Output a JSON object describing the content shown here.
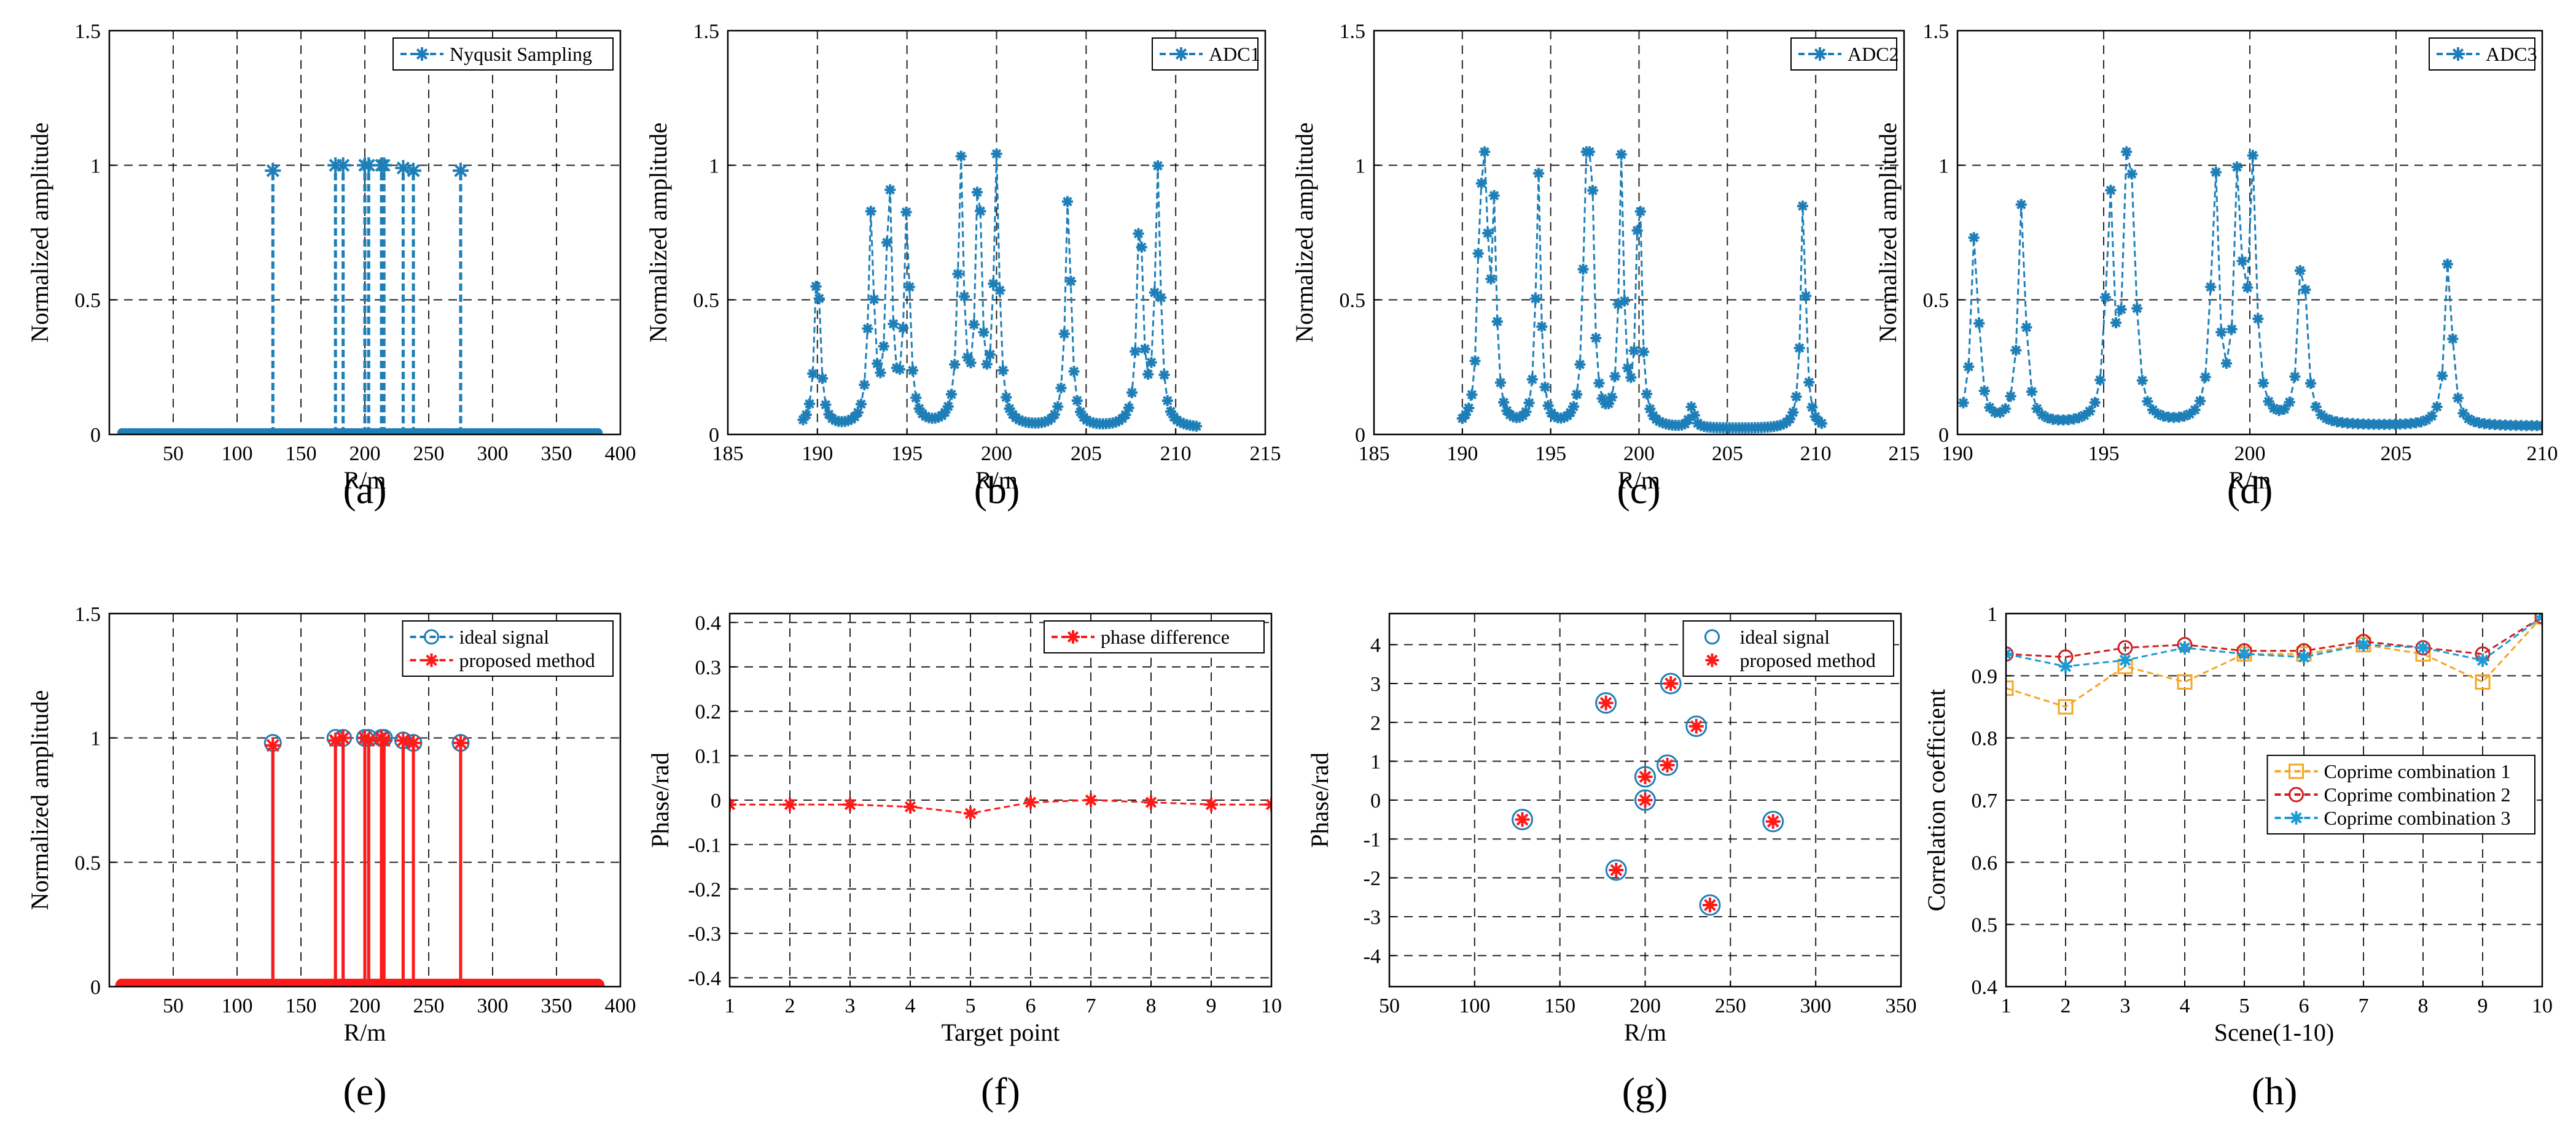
{
  "figure": {
    "caption_labels": [
      "(a)",
      "(b)",
      "(c)",
      "(d)",
      "(e)",
      "(f)",
      "(g)",
      "(h)"
    ]
  },
  "chart_data": [
    {
      "panel": "(a)",
      "type": "stem",
      "xlabel": "R/m",
      "ylabel": "Normalized amplitude",
      "xlim": [
        0,
        400
      ],
      "ylim": [
        0,
        1.5
      ],
      "xticks": [
        50,
        100,
        150,
        200,
        250,
        300,
        350,
        400
      ],
      "yticks": [
        0,
        0.5,
        1,
        1.5
      ],
      "ytick_labels": [
        "0",
        "0.5",
        "1",
        "1.5"
      ],
      "grid": true,
      "legend_position": "top-right",
      "noise_floor": {
        "x_range": [
          10,
          385
        ],
        "y": 0.005
      },
      "series": [
        {
          "name": "Nyqusit Sampling",
          "color": "#1E7FB8",
          "marker": "star",
          "style": "dashed",
          "x": [
            128,
            177,
            183,
            200,
            203,
            213,
            215,
            230,
            238,
            275
          ],
          "y": [
            0.98,
            1.0,
            1.0,
            1.0,
            1.0,
            1.0,
            1.0,
            0.99,
            0.98,
            0.98
          ]
        }
      ]
    },
    {
      "panel": "(b)",
      "type": "line",
      "xlabel": "R/m",
      "ylabel": "Normalized amplitude",
      "xlim": [
        185,
        215
      ],
      "ylim": [
        0,
        1.5
      ],
      "xticks": [
        185,
        190,
        195,
        200,
        205,
        210,
        215
      ],
      "yticks": [
        0,
        0.5,
        1,
        1.5
      ],
      "ytick_labels": [
        "0",
        "0.5",
        "1",
        "1.5"
      ],
      "grid": true,
      "legend_position": "top-right",
      "series": [
        {
          "name": "ADC1",
          "color": "#1E7FB8",
          "marker": "star",
          "style": "dashed",
          "x_range": [
            189.2,
            211.2
          ],
          "baseline": 0.02,
          "width": 0.28,
          "peaks": [
            [
              190,
              0.65
            ],
            [
              193,
              0.8
            ],
            [
              194,
              0.95
            ],
            [
              195,
              0.82
            ],
            [
              198,
              1.0
            ],
            [
              199,
              1.0
            ],
            [
              200,
              1.0
            ],
            [
              204,
              0.9
            ],
            [
              208,
              0.86
            ],
            [
              209,
              0.97
            ]
          ]
        }
      ]
    },
    {
      "panel": "(c)",
      "type": "line",
      "xlabel": "R/m",
      "ylabel": "Normalized amplitude",
      "xlim": [
        185,
        215
      ],
      "ylim": [
        0,
        1.5
      ],
      "xticks": [
        185,
        190,
        195,
        200,
        205,
        210,
        215
      ],
      "yticks": [
        0,
        0.5,
        1,
        1.5
      ],
      "ytick_labels": [
        "0",
        "0.5",
        "1",
        "1.5"
      ],
      "grid": true,
      "legend_position": "top-right",
      "series": [
        {
          "name": "ADC2",
          "color": "#1E7FB8",
          "marker": "star",
          "style": "dashed",
          "x_range": [
            190,
            210.5
          ],
          "baseline": 0.02,
          "width": 0.25,
          "peaks": [
            [
              191,
              0.72
            ],
            [
              191.3,
              0.95
            ],
            [
              191.8,
              0.77
            ],
            [
              194.3,
              0.97
            ],
            [
              197,
              1.0
            ],
            [
              197.3,
              0.93
            ],
            [
              199,
              1.0
            ],
            [
              200,
              1.0
            ],
            [
              203,
              0.1
            ],
            [
              209.3,
              0.9
            ]
          ]
        }
      ]
    },
    {
      "panel": "(d)",
      "type": "line",
      "xlabel": "R/m",
      "ylabel": "Normalized amplitude",
      "xlim": [
        190,
        210
      ],
      "ylim": [
        0,
        1.5
      ],
      "xticks": [
        190,
        195,
        200,
        205,
        210
      ],
      "yticks": [
        0,
        0.5,
        1,
        1.5
      ],
      "ytick_labels": [
        "0",
        "0.5",
        "1",
        "1.5"
      ],
      "grid": true,
      "legend_position": "top-right",
      "series": [
        {
          "name": "ADC3",
          "color": "#1E7FB8",
          "marker": "star",
          "style": "dashed",
          "x_range": [
            190.2,
            210
          ],
          "baseline": 0.03,
          "width": 0.22,
          "peaks": [
            [
              190.6,
              0.78
            ],
            [
              192.2,
              0.86
            ],
            [
              195.2,
              0.9
            ],
            [
              195.8,
              0.86
            ],
            [
              196,
              0.62
            ],
            [
              198.8,
              1.0
            ],
            [
              199.6,
              0.97
            ],
            [
              200.1,
              0.95
            ],
            [
              201.8,
              0.78
            ],
            [
              206.8,
              0.68
            ]
          ]
        }
      ]
    },
    {
      "panel": "(e)",
      "type": "stem",
      "xlabel": "R/m",
      "ylabel": "Normalized amplitude",
      "xlim": [
        0,
        400
      ],
      "ylim": [
        0,
        1.5
      ],
      "xticks": [
        50,
        100,
        150,
        200,
        250,
        300,
        350,
        400
      ],
      "yticks": [
        0,
        0.5,
        1,
        1.5
      ],
      "ytick_labels": [
        "0",
        "0.5",
        "1",
        "1.5"
      ],
      "grid": true,
      "legend_position": "top-right",
      "noise_floor": {
        "x_range": [
          10,
          385
        ],
        "y": 0.005
      },
      "series": [
        {
          "name": "ideal signal",
          "color": "#1E7FB8",
          "marker": "circle",
          "style": "dashed",
          "x": [
            128,
            177,
            183,
            200,
            203,
            213,
            215,
            230,
            238,
            275
          ],
          "y": [
            0.98,
            1.0,
            1.0,
            1.0,
            1.0,
            1.0,
            1.0,
            0.99,
            0.98,
            0.98
          ]
        },
        {
          "name": "proposed method",
          "color": "#FF1A1A",
          "marker": "star",
          "style": "dashed",
          "x": [
            128,
            177,
            183,
            200,
            203,
            213,
            215,
            230,
            238,
            275
          ],
          "y": [
            0.97,
            0.99,
            1.0,
            1.0,
            0.99,
            1.0,
            0.99,
            0.99,
            0.98,
            0.98
          ]
        }
      ]
    },
    {
      "panel": "(f)",
      "type": "line",
      "xlabel": "Target point",
      "ylabel": "Phase/rad",
      "xlim": [
        1,
        10
      ],
      "ylim": [
        -0.42,
        0.42
      ],
      "xticks": [
        1,
        2,
        3,
        4,
        5,
        6,
        7,
        8,
        9,
        10
      ],
      "yticks": [
        -0.4,
        -0.3,
        -0.2,
        -0.1,
        0,
        0.1,
        0.2,
        0.3,
        0.4
      ],
      "ytick_labels": [
        "-0.4",
        "-0.3",
        "-0.2",
        "-0.1",
        "0",
        "0.1",
        "0.2",
        "0.3",
        "0.4"
      ],
      "grid": true,
      "legend_position": "top-right",
      "series": [
        {
          "name": "phase difference",
          "color": "#FF1A1A",
          "marker": "star",
          "style": "dashed",
          "x": [
            1,
            2,
            3,
            4,
            5,
            6,
            7,
            8,
            9,
            10
          ],
          "y": [
            -0.01,
            -0.01,
            -0.01,
            -0.015,
            -0.03,
            -0.005,
            0.0,
            -0.005,
            -0.01,
            -0.01
          ]
        }
      ]
    },
    {
      "panel": "(g)",
      "type": "scatter",
      "xlabel": "R/m",
      "ylabel": "Phase/rad",
      "xlim": [
        50,
        350
      ],
      "ylim": [
        -4.8,
        4.8
      ],
      "xticks": [
        50,
        100,
        150,
        200,
        250,
        300,
        350
      ],
      "yticks": [
        -4,
        -3,
        -2,
        -1,
        0,
        1,
        2,
        3,
        4
      ],
      "ytick_labels": [
        "-4",
        "-3",
        "-2",
        "-1",
        "0",
        "1",
        "2",
        "3",
        "4"
      ],
      "grid": true,
      "legend_position": "top-right",
      "series": [
        {
          "name": "ideal signal",
          "color": "#1E7FB8",
          "marker": "circle",
          "x": [
            128,
            177,
            183,
            200,
            200,
            213,
            215,
            230,
            238,
            275
          ],
          "y": [
            -0.5,
            2.5,
            -1.8,
            0.6,
            0.0,
            0.9,
            3.0,
            1.9,
            -2.7,
            -0.55
          ]
        },
        {
          "name": "proposed method",
          "color": "#FF1A1A",
          "marker": "star",
          "x": [
            128,
            177,
            183,
            200,
            200,
            213,
            215,
            230,
            238,
            275
          ],
          "y": [
            -0.5,
            2.5,
            -1.8,
            0.6,
            0.0,
            0.9,
            3.0,
            1.9,
            -2.7,
            -0.55
          ]
        }
      ]
    },
    {
      "panel": "(h)",
      "type": "line",
      "xlabel": "Scene(1-10)",
      "ylabel": "Correlation coefficient",
      "xlim": [
        1,
        10
      ],
      "ylim": [
        0.4,
        1
      ],
      "xticks": [
        1,
        2,
        3,
        4,
        5,
        6,
        7,
        8,
        9,
        10
      ],
      "yticks": [
        0.4,
        0.5,
        0.6,
        0.7,
        0.8,
        0.9,
        1
      ],
      "ytick_labels": [
        "0.4",
        "0.5",
        "0.6",
        "0.7",
        "0.8",
        "0.9",
        "1"
      ],
      "grid": true,
      "legend_position": "center-right",
      "series": [
        {
          "name": "Coprime combination 1",
          "color": "#F5A623",
          "marker": "square",
          "style": "dashed",
          "x": [
            1,
            2,
            3,
            4,
            5,
            6,
            7,
            8,
            9,
            10
          ],
          "y": [
            0.88,
            0.85,
            0.915,
            0.89,
            0.935,
            0.935,
            0.95,
            0.935,
            0.89,
            0.995
          ]
        },
        {
          "name": "Coprime combination 2",
          "color": "#D01F1F",
          "marker": "circle",
          "style": "dashed",
          "x": [
            1,
            2,
            3,
            4,
            5,
            6,
            7,
            8,
            9,
            10
          ],
          "y": [
            0.935,
            0.93,
            0.945,
            0.95,
            0.94,
            0.94,
            0.955,
            0.945,
            0.935,
            0.995
          ]
        },
        {
          "name": "Coprime combination 3",
          "color": "#1E9BD2",
          "marker": "star",
          "style": "dashed",
          "x": [
            1,
            2,
            3,
            4,
            5,
            6,
            7,
            8,
            9,
            10
          ],
          "y": [
            0.935,
            0.915,
            0.925,
            0.945,
            0.935,
            0.93,
            0.95,
            0.945,
            0.925,
            0.995
          ]
        }
      ]
    }
  ]
}
